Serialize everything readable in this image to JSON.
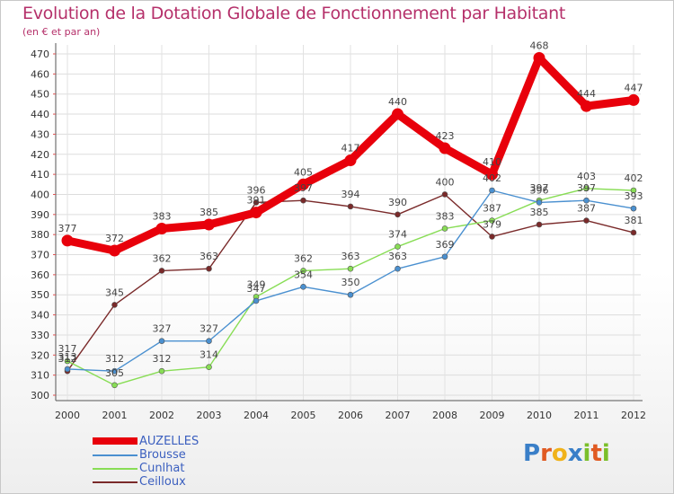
{
  "title": "Evolution de la Dotation Globale de Fonctionnement par Habitant",
  "subtitle": "(en € et par an)",
  "logo": {
    "letters": [
      {
        "ch": "P",
        "color": "#3a7fc8"
      },
      {
        "ch": "r",
        "color": "#e05a22"
      },
      {
        "ch": "o",
        "color": "#f0b21a"
      },
      {
        "ch": "x",
        "color": "#3a7fc8"
      },
      {
        "ch": "i",
        "color": "#7bbf2a"
      },
      {
        "ch": "t",
        "color": "#e05a22"
      },
      {
        "ch": "i",
        "color": "#7bbf2a"
      }
    ]
  },
  "chart_data": {
    "type": "line",
    "title": "Evolution de la Dotation Globale de Fonctionnement par Habitant",
    "subtitle": "(en € et par an)",
    "xlabel": "",
    "ylabel": "",
    "x": [
      "2000",
      "2001",
      "2002",
      "2003",
      "2004",
      "2005",
      "2006",
      "2007",
      "2008",
      "2009",
      "2010",
      "2011",
      "2012"
    ],
    "ylim": [
      300,
      470
    ],
    "yticks": [
      300,
      310,
      320,
      330,
      340,
      350,
      360,
      370,
      380,
      390,
      400,
      410,
      420,
      430,
      440,
      450,
      460,
      470
    ],
    "grid": true,
    "legend_position": "bottom-left",
    "series": [
      {
        "name": "AUZELLES",
        "color": "#e8000b",
        "values": [
          377,
          372,
          383,
          385,
          391,
          405,
          417,
          440,
          423,
          410,
          468,
          444,
          447
        ]
      },
      {
        "name": "Brousse",
        "color": "#4a90d0",
        "values": [
          313,
          312,
          327,
          327,
          347,
          354,
          350,
          363,
          369,
          402,
          396,
          397,
          393
        ]
      },
      {
        "name": "Cunlhat",
        "color": "#88dd55",
        "values": [
          317,
          305,
          312,
          314,
          349,
          362,
          363,
          374,
          383,
          387,
          397,
          403,
          402
        ]
      },
      {
        "name": "Ceilloux",
        "color": "#7a2a2a",
        "values": [
          312,
          345,
          362,
          363,
          396,
          397,
          394,
          390,
          400,
          379,
          385,
          387,
          381
        ]
      }
    ]
  }
}
